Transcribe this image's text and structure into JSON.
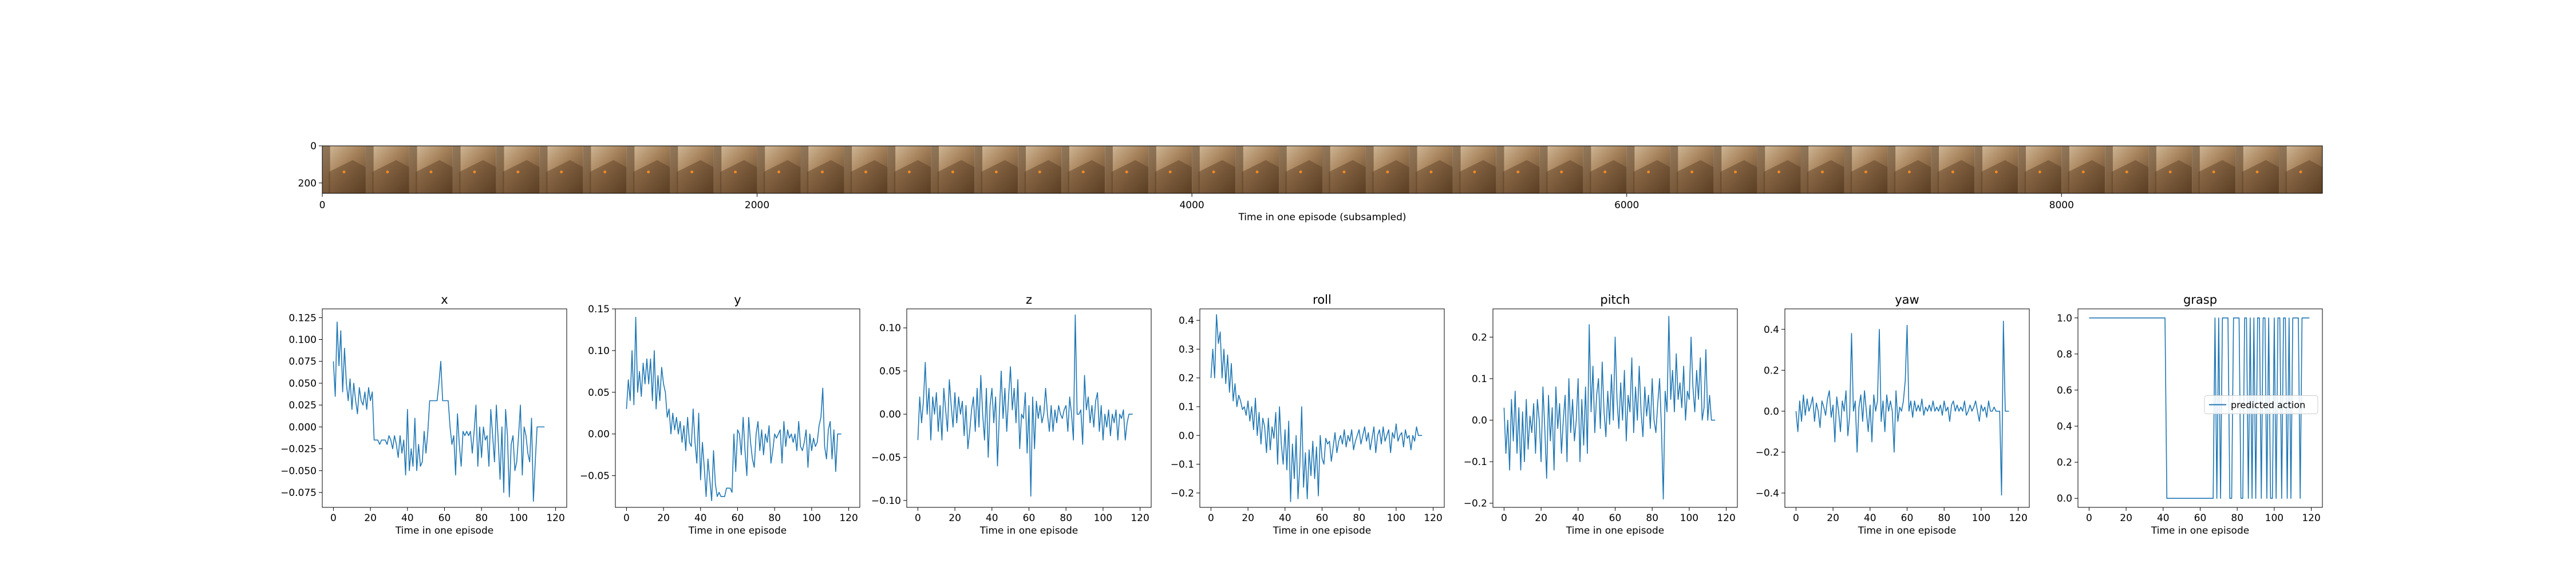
{
  "strip": {
    "xlabel": "Time in one episode (subsampled)",
    "xticks": [
      0,
      2000,
      4000,
      6000,
      8000
    ],
    "yticks": [
      0,
      200
    ],
    "xlim": [
      0,
      9200
    ],
    "ylim": [
      0,
      256
    ],
    "frames": 46
  },
  "colors": {
    "line": "#1f77b4",
    "frame_dark": "#5a3e24",
    "frame_mid": "#a7835c",
    "frame_light": "#d8c2a2",
    "marker": "#f08a24"
  },
  "legend": {
    "label": "predicted action",
    "placement": "center-right"
  },
  "chart_data": [
    {
      "type": "line",
      "title": "x",
      "xlabel": "Time in one episode",
      "ylabel": "",
      "xlim": [
        -6,
        126
      ],
      "ylim": [
        -0.092,
        0.135
      ],
      "xticks": [
        0,
        20,
        40,
        60,
        80,
        100,
        120
      ],
      "yticks": [
        -0.075,
        -0.05,
        -0.025,
        0.0,
        0.025,
        0.05,
        0.075,
        0.1,
        0.125
      ],
      "ytick_labels": [
        "−0.075",
        "−0.050",
        "−0.025",
        "0.000",
        "0.025",
        "0.050",
        "0.075",
        "0.100",
        "0.125"
      ],
      "series": [
        {
          "values": [
            0.075,
            0.035,
            0.12,
            0.07,
            0.11,
            0.04,
            0.09,
            0.05,
            0.03,
            0.055,
            0.02,
            0.05,
            0.03,
            0.015,
            0.045,
            0.03,
            0.025,
            0.04,
            0.02,
            0.045,
            0.03,
            0.04,
            -0.015,
            -0.015,
            -0.015,
            -0.02,
            -0.015,
            -0.015,
            -0.015,
            -0.02,
            -0.01,
            -0.015,
            -0.025,
            -0.01,
            -0.02,
            -0.035,
            -0.01,
            -0.03,
            -0.015,
            -0.055,
            0.02,
            -0.05,
            -0.025,
            -0.045,
            0.01,
            -0.05,
            -0.02,
            -0.045,
            -0.04,
            -0.005,
            -0.03,
            -0.005,
            0.03,
            0.03,
            0.03,
            0.03,
            0.03,
            0.05,
            0.075,
            0.03,
            0.03,
            0.03,
            0.03,
            0.0,
            -0.02,
            -0.01,
            -0.055,
            0.015,
            -0.02,
            -0.045,
            -0.005,
            -0.01,
            -0.005,
            -0.01,
            -0.005,
            -0.03,
            -0.005,
            0.025,
            -0.045,
            0.0,
            -0.035,
            0.0,
            -0.015,
            -0.01,
            -0.045,
            0.02,
            -0.01,
            -0.04,
            0.025,
            -0.015,
            -0.06,
            0.0,
            -0.075,
            0.02,
            -0.01,
            -0.08,
            -0.02,
            -0.01,
            -0.05,
            -0.04,
            -0.01,
            0.025,
            -0.055,
            0.0,
            -0.01,
            -0.03,
            -0.04,
            0.01,
            -0.085,
            -0.04,
            0.0,
            0.0,
            0.0,
            0.0,
            0.0
          ]
        }
      ]
    },
    {
      "type": "line",
      "title": "y",
      "xlabel": "Time in one episode",
      "ylabel": "",
      "xlim": [
        -6,
        126
      ],
      "ylim": [
        -0.088,
        0.15
      ],
      "xticks": [
        0,
        20,
        40,
        60,
        80,
        100,
        120
      ],
      "yticks": [
        -0.05,
        0.0,
        0.05,
        0.1,
        0.15
      ],
      "ytick_labels": [
        "−0.05",
        "0.00",
        "0.05",
        "0.10",
        "0.15"
      ],
      "series": [
        {
          "values": [
            0.03,
            0.065,
            0.04,
            0.1,
            0.035,
            0.14,
            0.05,
            0.075,
            0.045,
            0.085,
            0.06,
            0.09,
            0.06,
            0.09,
            0.04,
            0.1,
            0.03,
            0.07,
            0.04,
            0.08,
            0.06,
            0.05,
            0.02,
            0.03,
            0.0,
            0.025,
            0.005,
            0.02,
            0.0,
            0.015,
            -0.01,
            0.01,
            -0.02,
            0.02,
            -0.01,
            -0.015,
            0.03,
            -0.01,
            -0.035,
            0.025,
            -0.055,
            -0.01,
            -0.04,
            -0.075,
            -0.03,
            -0.055,
            -0.08,
            -0.02,
            -0.06,
            -0.075,
            -0.07,
            -0.075,
            -0.075,
            -0.075,
            -0.065,
            -0.065,
            -0.065,
            -0.07,
            0.0,
            -0.045,
            0.005,
            0.0,
            -0.025,
            0.02,
            -0.02,
            -0.05,
            0.02,
            -0.01,
            -0.03,
            -0.04,
            0.0,
            0.015,
            -0.02,
            0.005,
            -0.025,
            0.0,
            -0.01,
            0.01,
            -0.035,
            -0.02,
            0.0,
            -0.005,
            0.0,
            0.005,
            -0.035,
            0.015,
            -0.015,
            0.005,
            -0.005,
            0.0,
            -0.01,
            0.0,
            -0.02,
            0.015,
            -0.015,
            -0.02,
            -0.01,
            0.005,
            -0.04,
            0.0,
            -0.02,
            -0.005,
            -0.015,
            -0.01,
            0.01,
            0.02,
            0.055,
            -0.015,
            -0.03,
            0.005,
            0.015,
            -0.03,
            0.005,
            -0.045,
            0.0,
            0.0,
            0.0
          ]
        }
      ]
    },
    {
      "type": "line",
      "title": "z",
      "xlabel": "Time in one episode",
      "ylabel": "",
      "xlim": [
        -6,
        126
      ],
      "ylim": [
        -0.108,
        0.122
      ],
      "xticks": [
        0,
        20,
        40,
        60,
        80,
        100,
        120
      ],
      "yticks": [
        -0.1,
        -0.05,
        0.0,
        0.05,
        0.1
      ],
      "ytick_labels": [
        "−0.10",
        "−0.05",
        "0.00",
        "0.05",
        "0.10"
      ],
      "series": [
        {
          "values": [
            -0.03,
            0.02,
            -0.01,
            0.015,
            0.06,
            0.0,
            0.03,
            -0.03,
            0.02,
            0.0,
            0.025,
            -0.02,
            0.01,
            -0.03,
            0.03,
            0.005,
            -0.02,
            0.04,
            0.01,
            -0.015,
            0.025,
            -0.01,
            0.02,
            0.0,
            0.015,
            -0.025,
            0.01,
            -0.04,
            -0.02,
            0.005,
            0.02,
            -0.02,
            0.03,
            -0.015,
            0.045,
            0.0,
            -0.03,
            0.03,
            -0.05,
            0.01,
            0.03,
            -0.01,
            0.02,
            -0.06,
            0.0,
            0.05,
            -0.005,
            0.03,
            -0.02,
            0.02,
            0.055,
            0.005,
            0.03,
            -0.01,
            0.04,
            -0.04,
            0.0,
            -0.005,
            0.025,
            -0.045,
            0.01,
            -0.095,
            0.02,
            -0.04,
            0.015,
            -0.005,
            0.01,
            -0.01,
            0.0,
            0.03,
            0.0,
            -0.02,
            0.01,
            -0.02,
            0.005,
            -0.01,
            0.01,
            0.0,
            -0.005,
            0.005,
            0.01,
            -0.02,
            0.02,
            0.0,
            -0.03,
            0.115,
            0.0,
            0.0,
            0.005,
            -0.035,
            0.045,
            0.005,
            0.02,
            -0.01,
            0.01,
            -0.015,
            0.015,
            0.025,
            -0.02,
            0.01,
            -0.03,
            0.0,
            -0.015,
            0.005,
            -0.025,
            0.0,
            -0.01,
            0.005,
            -0.03,
            0.0,
            -0.005,
            0.005,
            -0.03,
            -0.01,
            0.0,
            0.0,
            0.0
          ]
        }
      ]
    },
    {
      "type": "line",
      "title": "roll",
      "xlabel": "Time in one episode",
      "ylabel": "",
      "xlim": [
        -6,
        126
      ],
      "ylim": [
        -0.25,
        0.44
      ],
      "xticks": [
        0,
        20,
        40,
        60,
        80,
        100,
        120
      ],
      "yticks": [
        -0.2,
        -0.1,
        0.0,
        0.1,
        0.2,
        0.3,
        0.4
      ],
      "ytick_labels": [
        "−0.2",
        "−0.1",
        "0.0",
        "0.1",
        "0.2",
        "0.3",
        "0.4"
      ],
      "series": [
        {
          "values": [
            0.2,
            0.3,
            0.2,
            0.42,
            0.32,
            0.36,
            0.2,
            0.3,
            0.18,
            0.28,
            0.15,
            0.25,
            0.12,
            0.18,
            0.1,
            0.14,
            0.12,
            0.09,
            0.1,
            0.07,
            0.12,
            0.05,
            0.1,
            0.02,
            0.13,
            0.0,
            0.08,
            -0.03,
            0.06,
            0.03,
            -0.06,
            0.06,
            -0.05,
            0.03,
            -0.01,
            0.08,
            -0.1,
            0.1,
            -0.03,
            -0.1,
            0.02,
            -0.12,
            0.05,
            -0.23,
            -0.03,
            -0.15,
            0.0,
            -0.22,
            -0.1,
            0.1,
            -0.18,
            -0.06,
            -0.22,
            -0.05,
            -0.14,
            -0.02,
            -0.15,
            -0.04,
            -0.21,
            0.0,
            -0.08,
            -0.1,
            -0.01,
            -0.03,
            -0.02,
            -0.09,
            -0.04,
            0.01,
            -0.06,
            -0.02,
            0.0,
            -0.03,
            0.02,
            -0.04,
            0.0,
            -0.02,
            0.02,
            -0.05,
            -0.02,
            0.0,
            0.02,
            -0.03,
            0.0,
            0.03,
            -0.02,
            0.01,
            -0.05,
            -0.01,
            0.03,
            -0.06,
            0.0,
            0.02,
            -0.03,
            0.03,
            -0.02,
            0.0,
            0.02,
            -0.06,
            0.01,
            -0.01,
            0.04,
            -0.02,
            0.0,
            0.01,
            -0.04,
            0.02,
            -0.01,
            0.0,
            -0.05,
            0.0,
            -0.02,
            0.03,
            0.0,
            0.0,
            0.0
          ]
        }
      ]
    },
    {
      "type": "line",
      "title": "pitch",
      "xlabel": "Time in one episode",
      "ylabel": "",
      "xlim": [
        -6,
        126
      ],
      "ylim": [
        -0.21,
        0.268
      ],
      "xticks": [
        0,
        20,
        40,
        60,
        80,
        100,
        120
      ],
      "yticks": [
        -0.2,
        -0.1,
        0.0,
        0.1,
        0.2
      ],
      "ytick_labels": [
        "−0.2",
        "−0.1",
        "0.0",
        "0.1",
        "0.2"
      ],
      "series": [
        {
          "values": [
            0.03,
            -0.08,
            0.0,
            -0.12,
            0.05,
            -0.05,
            0.07,
            -0.08,
            0.03,
            -0.12,
            0.02,
            -0.1,
            0.05,
            -0.07,
            0.01,
            -0.03,
            0.04,
            -0.08,
            0.05,
            0.0,
            -0.1,
            0.08,
            -0.02,
            -0.14,
            0.06,
            -0.05,
            0.03,
            -0.12,
            0.08,
            -0.02,
            0.04,
            -0.08,
            0.0,
            0.06,
            -0.1,
            0.1,
            -0.03,
            0.05,
            -0.05,
            0.0,
            0.1,
            -0.1,
            0.05,
            -0.06,
            0.08,
            -0.08,
            0.23,
            0.02,
            0.13,
            -0.03,
            0.06,
            0.1,
            -0.02,
            0.14,
            0.02,
            -0.04,
            0.07,
            -0.01,
            0.11,
            0.0,
            0.2,
            0.05,
            -0.02,
            0.09,
            0.0,
            0.12,
            -0.05,
            0.06,
            0.02,
            0.15,
            -0.03,
            0.08,
            0.0,
            0.13,
            0.02,
            -0.04,
            0.08,
            0.01,
            0.06,
            -0.02,
            0.1,
            0.0,
            -0.03,
            0.04,
            0.1,
            -0.02,
            -0.19,
            0.07,
            0.02,
            0.25,
            0.05,
            0.12,
            0.02,
            0.16,
            0.05,
            0.09,
            0.03,
            0.13,
            0.0,
            0.07,
            0.05,
            0.2,
            0.08,
            0.02,
            0.12,
            0.05,
            0.15,
            0.0,
            0.03,
            0.17,
            0.0,
            0.06,
            0.0,
            0.0,
            0.0
          ]
        }
      ]
    },
    {
      "type": "line",
      "title": "yaw",
      "xlabel": "Time in one episode",
      "ylabel": "",
      "xlim": [
        -6,
        126
      ],
      "ylim": [
        -0.47,
        0.5
      ],
      "xticks": [
        0,
        20,
        40,
        60,
        80,
        100,
        120
      ],
      "yticks": [
        -0.4,
        -0.2,
        0.0,
        0.2,
        0.4
      ],
      "ytick_labels": [
        "−0.4",
        "−0.2",
        "0.0",
        "0.2",
        "0.4"
      ],
      "series": [
        {
          "values": [
            0.0,
            -0.1,
            0.05,
            -0.05,
            0.08,
            -0.02,
            0.06,
            0.0,
            0.03,
            0.07,
            -0.05,
            0.04,
            0.0,
            -0.08,
            0.05,
            0.02,
            -0.02,
            0.06,
            0.1,
            -0.03,
            0.03,
            -0.15,
            0.07,
            0.0,
            -0.1,
            0.05,
            0.0,
            0.1,
            -0.12,
            -0.02,
            0.38,
            0.0,
            0.05,
            -0.2,
            0.02,
            0.08,
            -0.05,
            0.1,
            0.0,
            -0.1,
            0.03,
            -0.15,
            0.08,
            0.0,
            0.05,
            0.4,
            -0.05,
            0.05,
            -0.1,
            0.08,
            0.0,
            0.05,
            0.0,
            -0.2,
            0.1,
            -0.05,
            0.02,
            0.0,
            0.05,
            0.15,
            0.42,
            0.0,
            0.05,
            -0.03,
            0.05,
            0.0,
            0.03,
            0.0,
            0.06,
            -0.02,
            0.02,
            0.0,
            0.03,
            0.0,
            0.05,
            0.0,
            0.02,
            0.0,
            0.03,
            -0.02,
            0.05,
            0.0,
            0.02,
            -0.05,
            0.03,
            0.05,
            0.0,
            0.03,
            0.0,
            0.02,
            0.0,
            0.05,
            -0.02,
            0.0,
            0.03,
            0.0,
            0.02,
            0.05,
            0.0,
            -0.05,
            0.03,
            0.0,
            0.02,
            -0.03,
            0.05,
            0.0,
            0.0,
            0.02,
            0.0,
            0.0,
            0.0,
            -0.41,
            0.44,
            0.0,
            0.0,
            0.0
          ]
        }
      ]
    },
    {
      "type": "line",
      "title": "grasp",
      "xlabel": "Time in one episode",
      "ylabel": "",
      "xlim": [
        -6,
        126
      ],
      "ylim": [
        -0.05,
        1.05
      ],
      "xticks": [
        0,
        20,
        40,
        60,
        80,
        100,
        120
      ],
      "yticks": [
        0.0,
        0.2,
        0.4,
        0.6,
        0.8,
        1.0
      ],
      "ytick_labels": [
        "0.0",
        "0.2",
        "0.4",
        "0.6",
        "0.8",
        "1.0"
      ],
      "series": [
        {
          "name": "predicted action",
          "values": [
            1,
            1,
            1,
            1,
            1,
            1,
            1,
            1,
            1,
            1,
            1,
            1,
            1,
            1,
            1,
            1,
            1,
            1,
            1,
            1,
            1,
            1,
            1,
            1,
            1,
            1,
            1,
            1,
            1,
            1,
            1,
            1,
            1,
            1,
            1,
            1,
            1,
            1,
            1,
            1,
            1,
            1,
            0,
            0,
            0,
            0,
            0,
            0,
            0,
            0,
            0,
            0,
            0,
            0,
            0,
            0,
            0,
            0,
            0,
            0,
            0,
            0,
            0,
            0,
            0,
            0,
            0,
            0,
            1,
            0,
            1,
            0,
            1,
            1,
            1,
            1,
            0,
            0,
            1,
            1,
            1,
            1,
            0,
            0,
            1,
            1,
            0,
            1,
            0,
            1,
            0,
            1,
            1,
            0,
            1,
            1,
            0,
            1,
            0,
            0,
            1,
            0,
            1,
            1,
            0,
            1,
            1,
            0,
            1,
            0,
            1,
            1,
            1,
            1,
            0,
            1,
            1,
            1,
            1,
            1
          ]
        }
      ]
    }
  ]
}
